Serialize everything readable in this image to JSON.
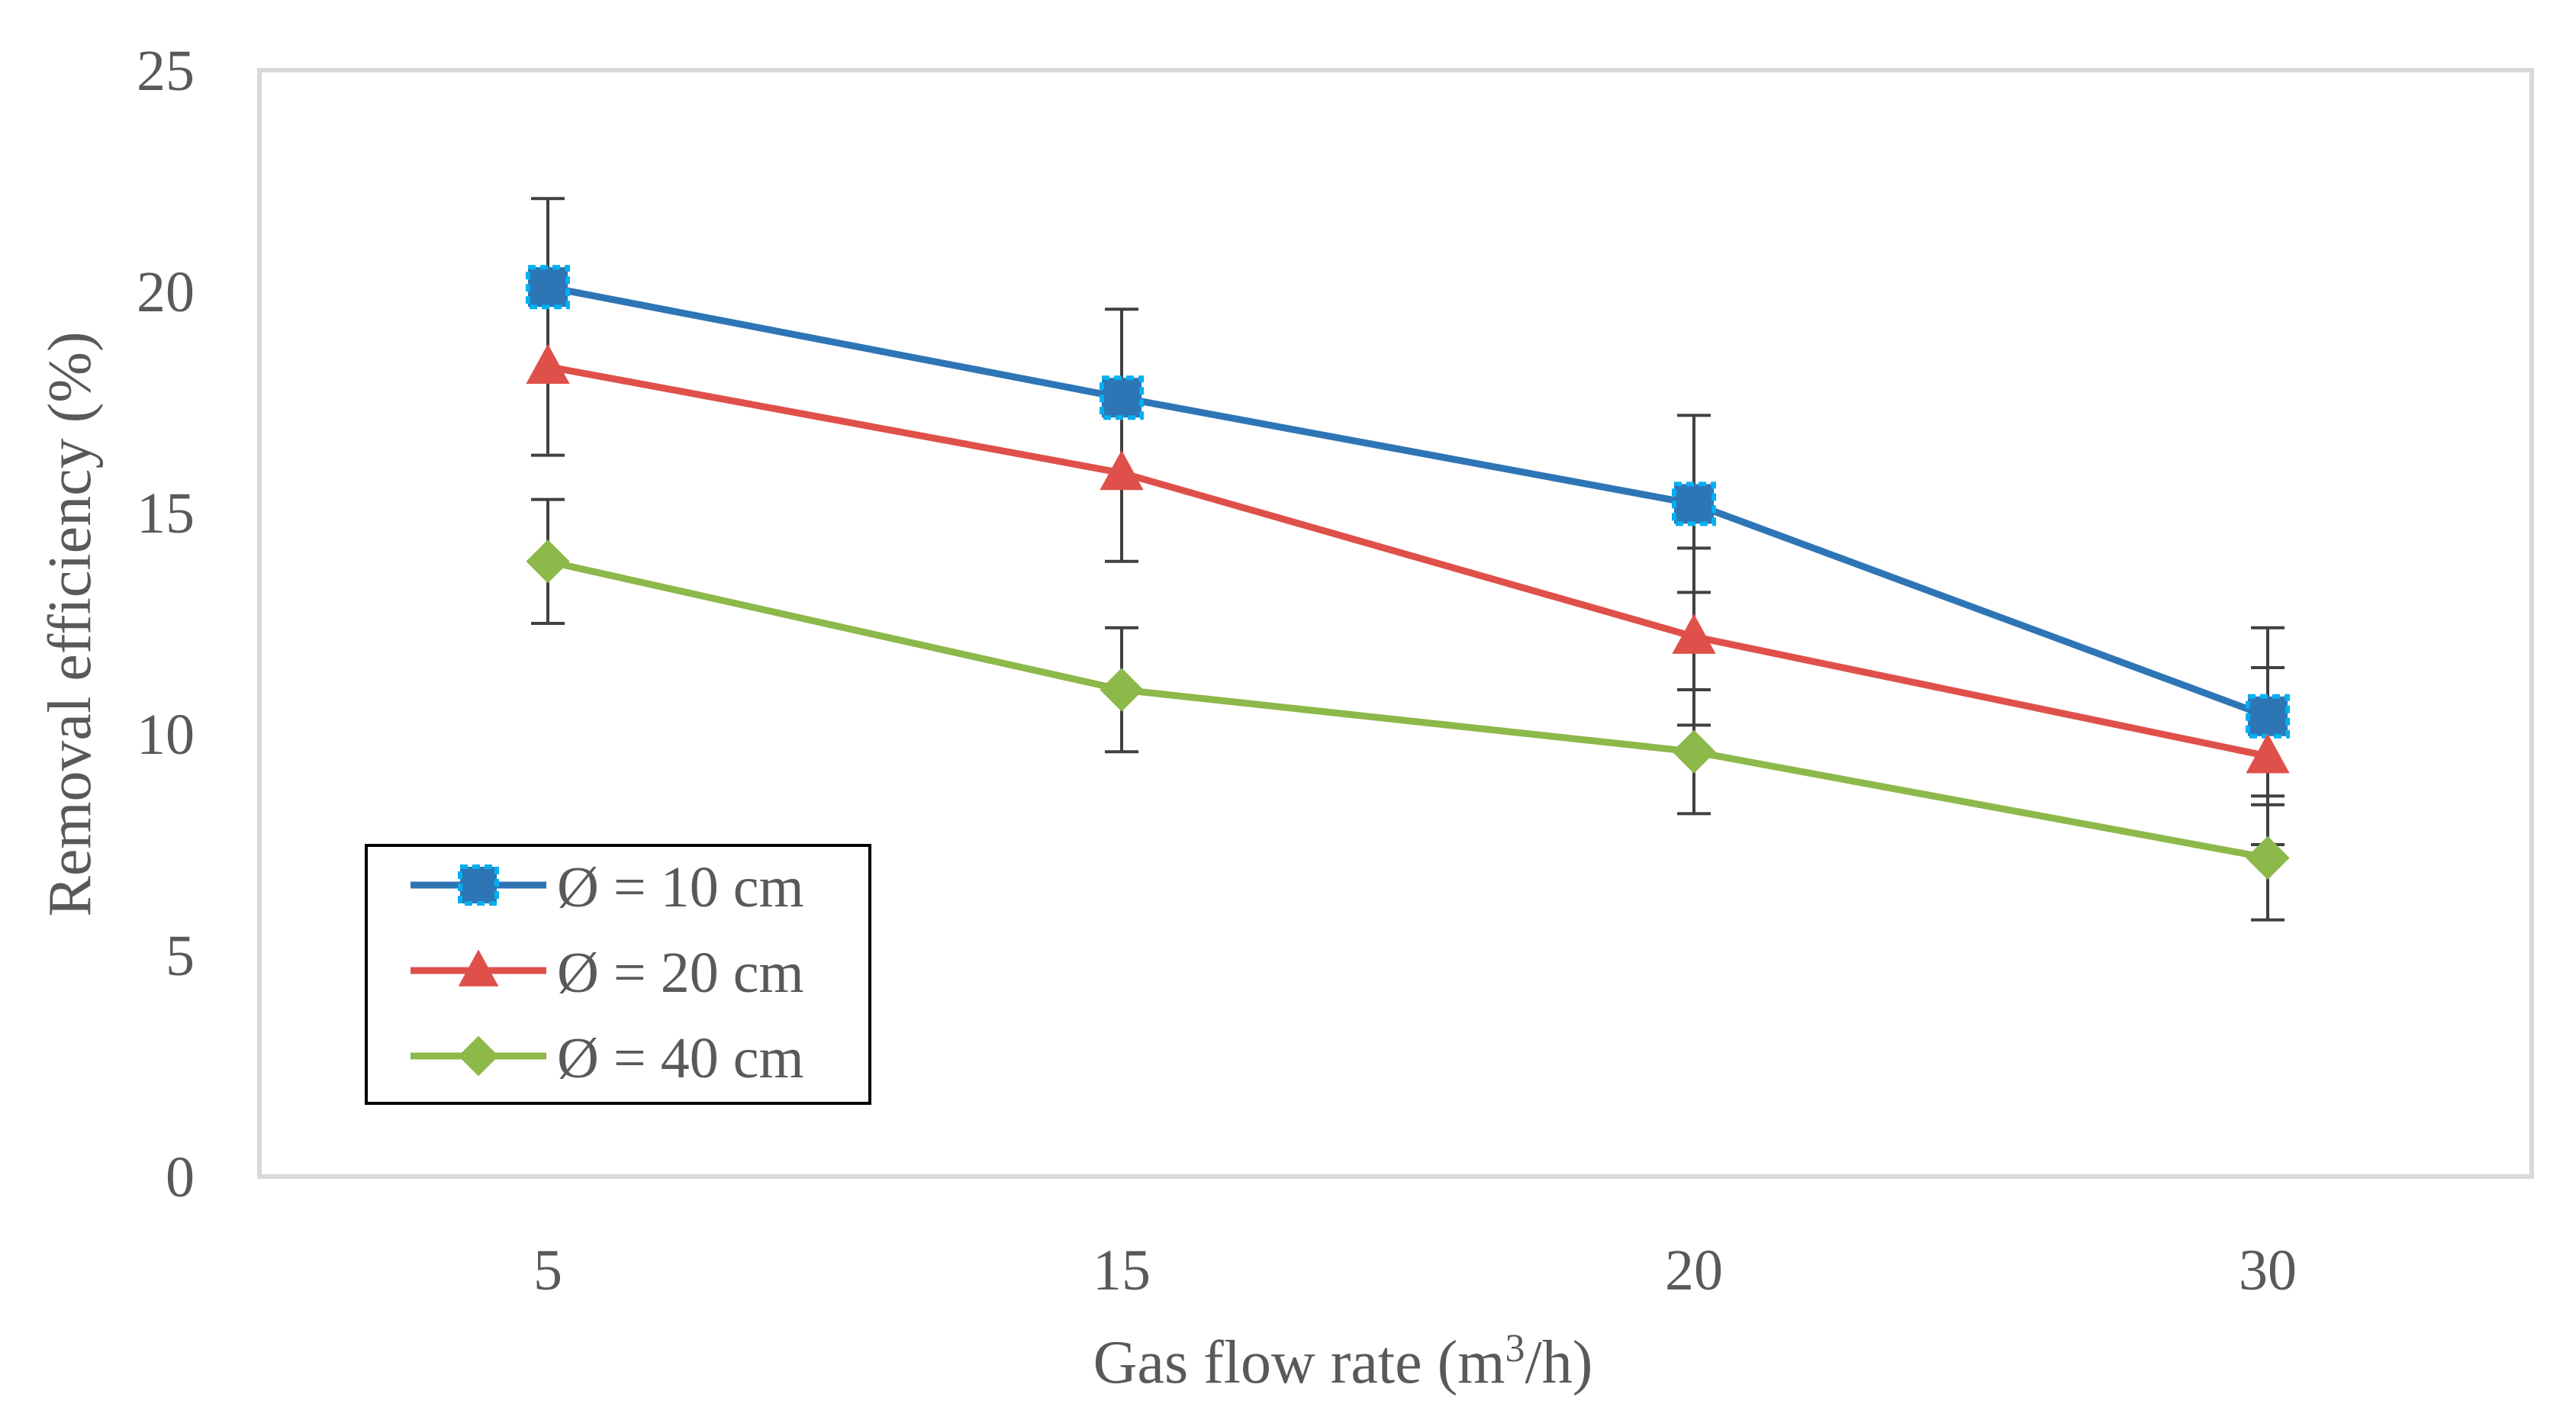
{
  "chart_data": {
    "type": "line",
    "title": "",
    "xlabel": "Gas flow rate (m",
    "xlabel_sup": "3",
    "xlabel_tail": "/h)",
    "ylabel": "Removal efficiency (%)",
    "categories": [
      "5",
      "15",
      "20",
      "30"
    ],
    "ylim": [
      0,
      25
    ],
    "yticks": [
      "0",
      "5",
      "10",
      "15",
      "20",
      "25"
    ],
    "legend_position": "bottom-left",
    "series": [
      {
        "name": "Ø = 10 cm",
        "color": "#2E75B6",
        "marker": "square",
        "values": [
          20.1,
          17.6,
          15.2,
          10.4
        ],
        "errors": [
          2.0,
          2.0,
          2.0,
          2.0
        ]
      },
      {
        "name": "Ø = 20 cm",
        "color": "#E0504A",
        "marker": "triangle",
        "values": [
          18.3,
          15.9,
          12.2,
          9.5
        ],
        "errors": [
          2.0,
          2.0,
          2.0,
          2.0
        ]
      },
      {
        "name": "Ø = 40 cm",
        "color": "#8DB84A",
        "marker": "diamond",
        "values": [
          13.9,
          11.0,
          9.6,
          7.2
        ],
        "errors": [
          1.4,
          1.4,
          1.4,
          1.4
        ]
      }
    ]
  }
}
